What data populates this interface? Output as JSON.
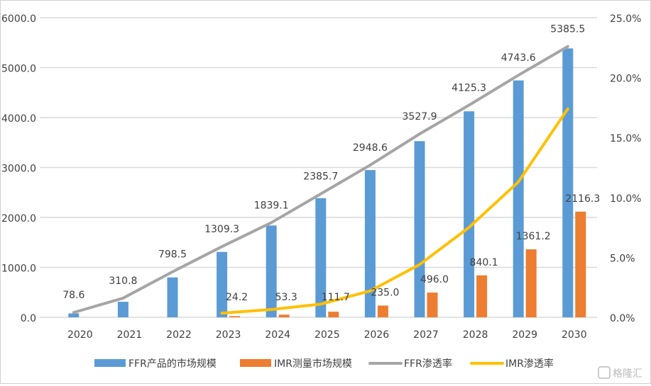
{
  "chart_data": {
    "type": "bar",
    "categories": [
      "2020",
      "2021",
      "2022",
      "2023",
      "2024",
      "2025",
      "2026",
      "2027",
      "2028",
      "2029",
      "2030"
    ],
    "series": [
      {
        "name": "FFR产品的市场规模",
        "kind": "bar",
        "axis": "left",
        "color": "#5B9BD5",
        "values": [
          78.6,
          310.8,
          798.5,
          1309.3,
          1839.1,
          2385.7,
          2948.6,
          3527.9,
          4125.3,
          4743.6,
          5385.5
        ]
      },
      {
        "name": "IMR测量市场规模",
        "kind": "bar",
        "axis": "left",
        "color": "#ED7D31",
        "values": [
          null,
          null,
          null,
          24.2,
          53.3,
          111.7,
          235.0,
          496.0,
          840.1,
          1361.2,
          2116.3
        ]
      },
      {
        "name": "FFR渗透率",
        "kind": "line",
        "axis": "right",
        "color": "#A5A5A5",
        "values": [
          0.4,
          1.6,
          3.8,
          5.9,
          7.9,
          10.3,
          12.7,
          15.3,
          17.7,
          20.2,
          22.6
        ]
      },
      {
        "name": "IMR渗透率",
        "kind": "line",
        "axis": "right",
        "color": "#FFC000",
        "values": [
          null,
          null,
          null,
          0.35,
          0.65,
          1.1,
          2.2,
          4.4,
          7.5,
          11.3,
          17.4
        ]
      }
    ],
    "y_left": {
      "range": [
        0,
        6000
      ],
      "ticks": [
        "0.0",
        "1000.0",
        "2000.0",
        "3000.0",
        "4000.0",
        "5000.0",
        "6000.0"
      ]
    },
    "y_right": {
      "range": [
        0,
        25
      ],
      "unit": "%",
      "ticks": [
        "0.0%",
        "5.0%",
        "10.0%",
        "15.0%",
        "20.0%",
        "25.0%"
      ]
    },
    "grid": true,
    "legend_position": "bottom"
  },
  "watermark": "格隆汇"
}
